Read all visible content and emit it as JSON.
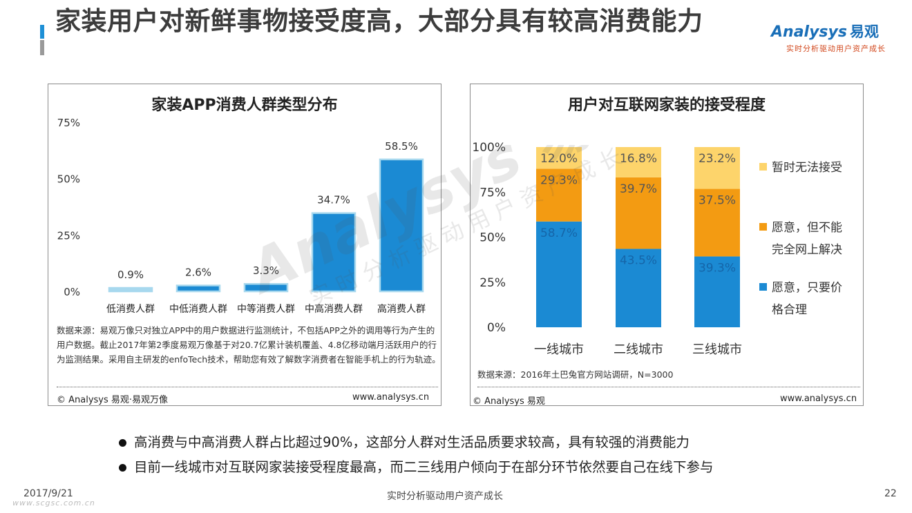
{
  "header": {
    "title": "家装用户对新鲜事物接受度高，大部分具有较高消费能力",
    "logo_word": "Analysys",
    "logo_cn": "易观",
    "logo_slogan": "实时分析驱动用户资产成长"
  },
  "watermark": {
    "word": "Analysys 易观",
    "slogan": "实时分析驱动用户资产成长"
  },
  "left_panel": {
    "source": "数据来源：易观万像只对独立APP中的用户数据进行监测统计，不包括APP之外的调用等行为产生的用户数据。截止2017年第2季度易观万像基于对20.7亿累计装机覆盖、4.8亿移动端月活跃用户的行为监测结果。采用自主研发的enfoTech技术，帮助您有效了解数字消费者在智能手机上的行为轨迹。",
    "copyright": "© Analysys 易观·易观万像",
    "url": "www.analysys.cn"
  },
  "right_panel": {
    "source": "数据来源：2016年土巴兔官方网站调研，N=3000",
    "copyright": "© Analysys 易观",
    "url": "www.analysys.cn"
  },
  "chart_data": [
    {
      "type": "bar",
      "title": "家装APP消费人群类型分布",
      "categories": [
        "低消费人群",
        "中低消费人群",
        "中等消费人群",
        "中高消费人群",
        "高消费人群"
      ],
      "values": [
        0.9,
        2.6,
        3.3,
        34.7,
        58.5
      ],
      "value_labels": [
        "0.9%",
        "2.6%",
        "3.3%",
        "34.7%",
        "58.5%"
      ],
      "ylim": [
        0,
        75
      ],
      "yticks": [
        "0%",
        "25%",
        "50%",
        "75%"
      ],
      "ytick_values": [
        0,
        25,
        50,
        75
      ],
      "colors": [
        "#a7d8ee",
        "#1b8ad3",
        "#1b8ad3",
        "#1b8ad3",
        "#1b8ad3"
      ],
      "grid": false
    },
    {
      "type": "bar",
      "stacked": true,
      "title": "用户对互联网家装的接受程度",
      "categories": [
        "一线城市",
        "二线城市",
        "三线城市"
      ],
      "ylim": [
        0,
        100
      ],
      "yticks": [
        "0%",
        "25%",
        "50%",
        "75%",
        "100%"
      ],
      "ytick_values": [
        0,
        25,
        50,
        75,
        100
      ],
      "legend_position": "right",
      "series": [
        {
          "name": "愿意，只要价格合理",
          "legend_lines": [
            "愿意，只要价",
            "格合理"
          ],
          "values": [
            58.7,
            43.5,
            39.3
          ],
          "labels": [
            "58.7%",
            "43.5%",
            "39.3%"
          ],
          "color": "#1b8ad3"
        },
        {
          "name": "愿意，但不能完全网上解决",
          "legend_lines": [
            "愿意，但不能",
            "完全网上解决"
          ],
          "values": [
            29.3,
            39.7,
            37.5
          ],
          "labels": [
            "29.3%",
            "39.7%",
            "37.5%"
          ],
          "color": "#f39b12"
        },
        {
          "name": "暂时无法接受",
          "legend_lines": [
            "暂时无法接受"
          ],
          "values": [
            12.0,
            16.8,
            23.2
          ],
          "labels": [
            "12.0%",
            "16.8%",
            "23.2%"
          ],
          "color": "#fdd46b"
        }
      ],
      "grid": false
    }
  ],
  "bullets": [
    "高消费与中高消费人群占比超过90%，这部分人群对生活品质要求较高，具有较强的消费能力",
    "目前一线城市对互联网家装接受程度最高，而二三线用户倾向于在部分环节依然要自己在线下参与"
  ],
  "footer": {
    "date": "2017/9/21",
    "slogan": "实时分析驱动用户资产成长",
    "page": "22",
    "url": "www.scgsc.com.cn"
  }
}
